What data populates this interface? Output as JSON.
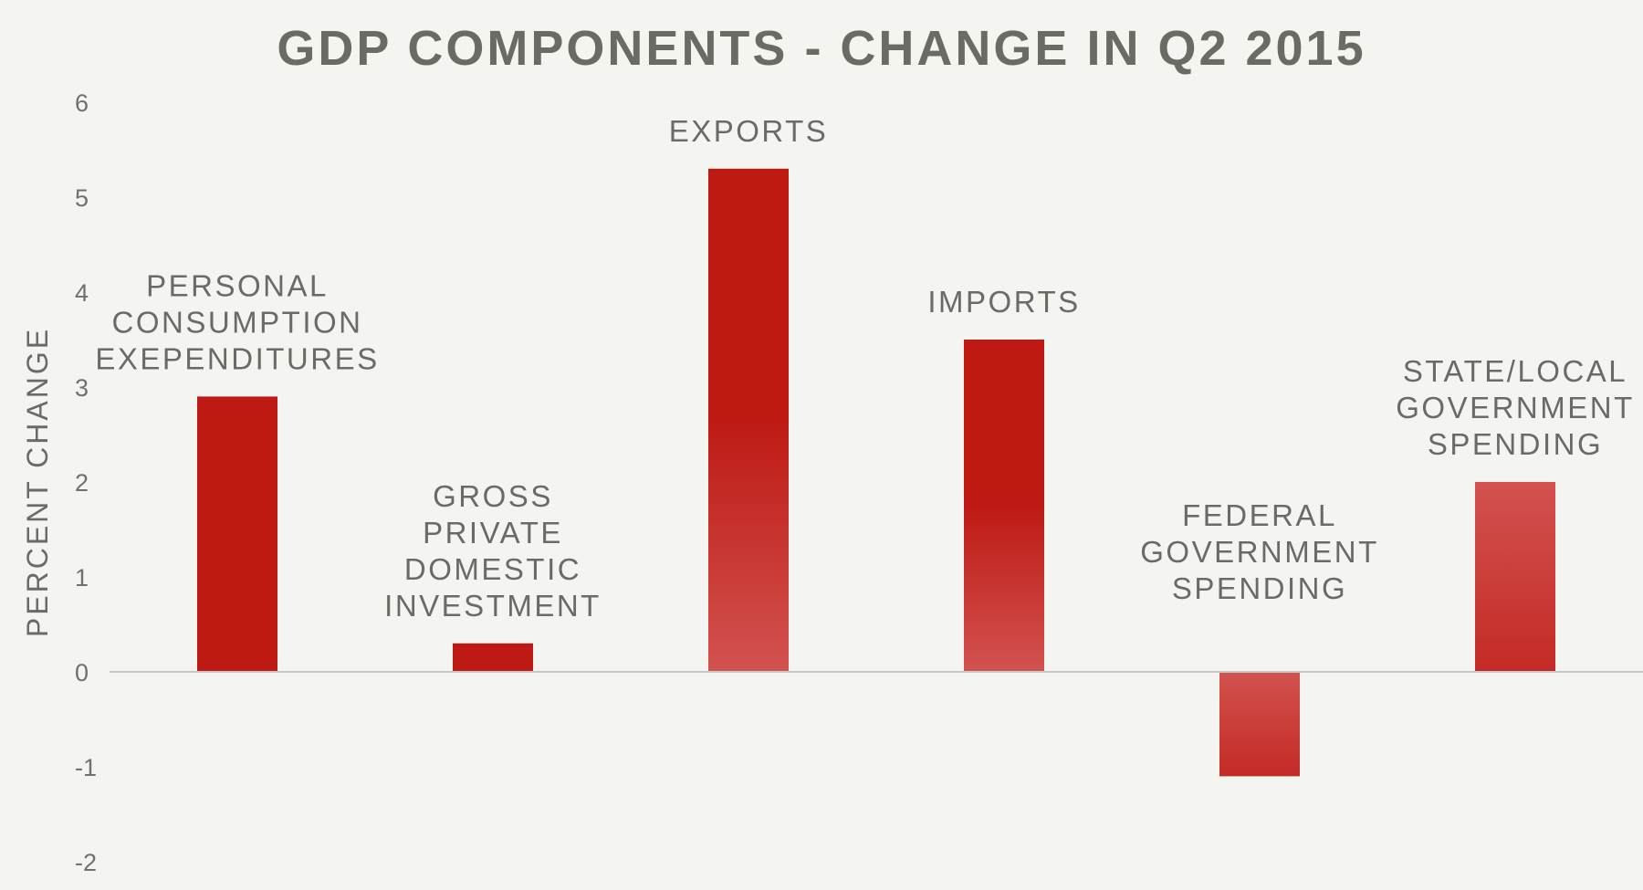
{
  "chart_data": {
    "type": "bar",
    "title": "GDP COMPONENTS - CHANGE IN Q2 2015",
    "xlabel": "",
    "ylabel": "PERCENT CHANGE",
    "ylim": [
      -2,
      6
    ],
    "yticks": [
      "6",
      "5",
      "4",
      "3",
      "2",
      "1",
      "0",
      "-1",
      "-2"
    ],
    "grid": false,
    "categories": [
      [
        "PERSONAL",
        "CONSUMPTION",
        "EXEPENDITURES"
      ],
      [
        "GROSS",
        "PRIVATE",
        "DOMESTIC",
        "INVESTMENT"
      ],
      [
        "EXPORTS"
      ],
      [
        "IMPORTS"
      ],
      [
        "FEDERAL",
        "GOVERNMENT",
        "SPENDING"
      ],
      [
        "STATE/LOCAL",
        "GOVERNMENT",
        "SPENDING"
      ]
    ],
    "values": [
      2.9,
      0.3,
      5.3,
      3.5,
      -1.1,
      2.0
    ],
    "bar_color": "#be1a14",
    "bar_color_light": "#d2524f"
  }
}
